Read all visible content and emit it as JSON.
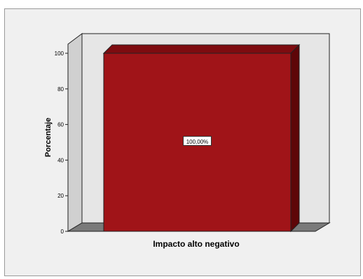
{
  "chart_data": {
    "type": "bar",
    "title": "",
    "categories": [
      "Impacto alto negativo"
    ],
    "values": [
      100
    ],
    "value_labels": [
      "100,00%"
    ],
    "xlabel": "",
    "ylabel": "Porcentaje",
    "ylim": [
      0,
      100
    ],
    "yticks": [
      "0",
      "20",
      "40",
      "60",
      "80",
      "100"
    ],
    "grid": false,
    "legend": "none",
    "style": "3d",
    "bar_color": "#a01418"
  }
}
